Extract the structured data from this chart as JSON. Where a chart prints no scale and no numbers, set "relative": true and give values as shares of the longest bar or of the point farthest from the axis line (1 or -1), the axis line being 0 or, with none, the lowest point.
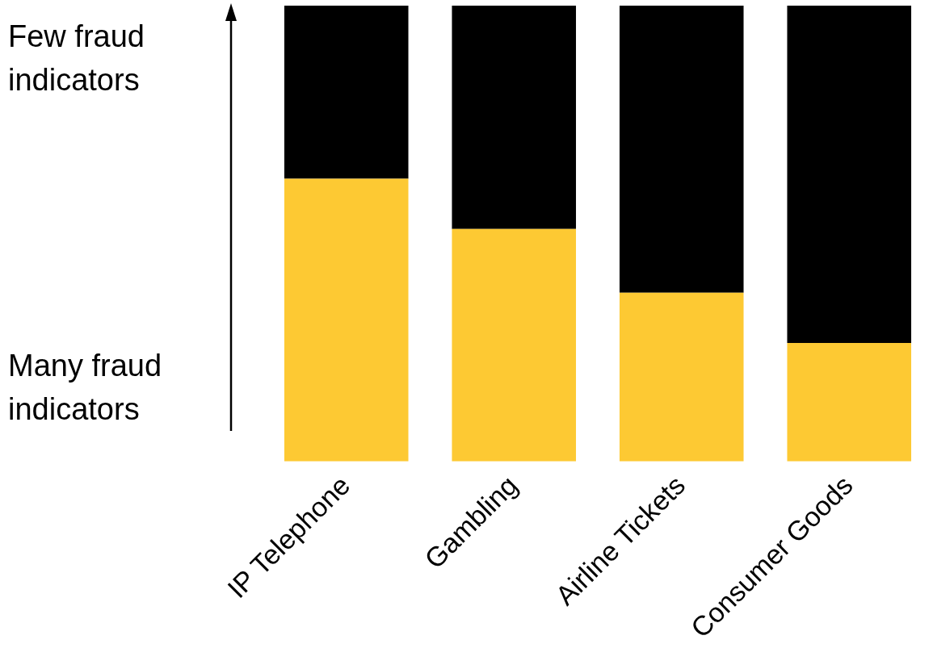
{
  "chart_data": {
    "type": "bar",
    "relative": true,
    "stacked": true,
    "categories": [
      "IP Telephone",
      "Gambling",
      "Airline Tickets",
      "Consumer Goods"
    ],
    "series": [
      {
        "color": "#fdc933",
        "values": [
          0.62,
          0.51,
          0.37,
          0.26
        ]
      },
      {
        "color": "#000000",
        "values": [
          0.38,
          0.49,
          0.63,
          0.74
        ]
      }
    ],
    "annotations": [
      "Few fraud indicators",
      "Many fraud indicators"
    ]
  }
}
